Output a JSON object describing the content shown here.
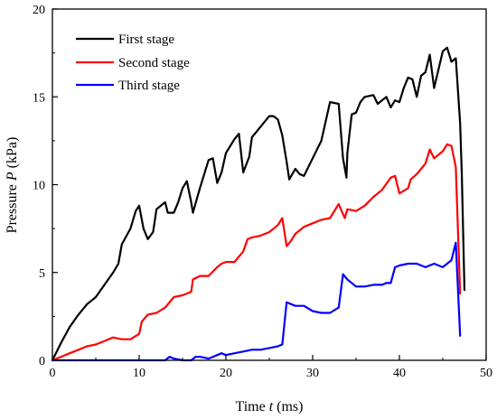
{
  "chart_data": {
    "type": "line",
    "xlabel": {
      "prefix": "Time ",
      "var": "t",
      "suffix": " (ms)"
    },
    "ylabel": {
      "prefix": "Pressure ",
      "var": "P",
      "suffix": " (kPa)"
    },
    "xlim": [
      0,
      50
    ],
    "ylim": [
      0,
      20
    ],
    "xticks": [
      0,
      10,
      20,
      30,
      40,
      50
    ],
    "yticks": [
      0,
      5,
      10,
      15,
      20
    ],
    "grid": false,
    "legend_position": "top-left",
    "series": [
      {
        "name": "First stage",
        "color": "#000000",
        "points": [
          [
            0,
            0
          ],
          [
            1,
            1.0
          ],
          [
            2,
            1.9
          ],
          [
            3,
            2.6
          ],
          [
            4,
            3.2
          ],
          [
            5,
            3.6
          ],
          [
            6,
            4.3
          ],
          [
            7,
            5.0
          ],
          [
            7.6,
            5.5
          ],
          [
            8,
            6.6
          ],
          [
            9,
            7.5
          ],
          [
            9.6,
            8.5
          ],
          [
            10,
            8.8
          ],
          [
            10.5,
            7.5
          ],
          [
            11,
            6.9
          ],
          [
            11.6,
            7.3
          ],
          [
            12,
            8.6
          ],
          [
            13,
            9.0
          ],
          [
            13.3,
            8.4
          ],
          [
            14,
            8.4
          ],
          [
            14.5,
            9.0
          ],
          [
            15,
            9.8
          ],
          [
            15.5,
            10.2
          ],
          [
            16,
            9.0
          ],
          [
            16.2,
            8.4
          ],
          [
            17,
            9.8
          ],
          [
            18,
            11.4
          ],
          [
            18.5,
            11.5
          ],
          [
            19,
            10.1
          ],
          [
            19.5,
            10.7
          ],
          [
            20,
            11.8
          ],
          [
            21,
            12.6
          ],
          [
            21.5,
            12.9
          ],
          [
            22,
            10.7
          ],
          [
            22.7,
            11.6
          ],
          [
            23,
            12.7
          ],
          [
            24,
            13.3
          ],
          [
            25,
            13.9
          ],
          [
            25.5,
            13.9
          ],
          [
            26,
            13.7
          ],
          [
            26.5,
            12.8
          ],
          [
            27,
            11.3
          ],
          [
            27.3,
            10.3
          ],
          [
            28,
            10.9
          ],
          [
            28.5,
            10.6
          ],
          [
            29,
            10.5
          ],
          [
            30,
            11.5
          ],
          [
            31,
            12.5
          ],
          [
            32,
            14.7
          ],
          [
            33,
            14.6
          ],
          [
            33.5,
            11.5
          ],
          [
            33.9,
            10.4
          ],
          [
            34,
            11.8
          ],
          [
            34.5,
            14.0
          ],
          [
            35,
            14.1
          ],
          [
            35.5,
            14.7
          ],
          [
            36,
            15.0
          ],
          [
            37,
            15.1
          ],
          [
            37.5,
            14.6
          ],
          [
            38,
            14.8
          ],
          [
            38.5,
            15.0
          ],
          [
            39,
            14.4
          ],
          [
            39.5,
            14.8
          ],
          [
            40,
            14.7
          ],
          [
            40.5,
            15.5
          ],
          [
            41,
            16.1
          ],
          [
            41.5,
            16.0
          ],
          [
            42,
            15.0
          ],
          [
            42.5,
            16.2
          ],
          [
            43,
            16.4
          ],
          [
            43.5,
            17.4
          ],
          [
            44,
            15.5
          ],
          [
            45,
            17.6
          ],
          [
            45.5,
            17.8
          ],
          [
            46,
            17.0
          ],
          [
            46.5,
            17.2
          ],
          [
            47,
            13.5
          ],
          [
            47.2,
            10.5
          ],
          [
            47.5,
            4.0
          ]
        ]
      },
      {
        "name": "Second stage",
        "color": "#ff0000",
        "points": [
          [
            0,
            0
          ],
          [
            1,
            0.2
          ],
          [
            2,
            0.4
          ],
          [
            3,
            0.6
          ],
          [
            4,
            0.8
          ],
          [
            5,
            0.9
          ],
          [
            6,
            1.1
          ],
          [
            7,
            1.3
          ],
          [
            8,
            1.2
          ],
          [
            9,
            1.2
          ],
          [
            10,
            1.5
          ],
          [
            10.3,
            2.2
          ],
          [
            11,
            2.6
          ],
          [
            12,
            2.7
          ],
          [
            13,
            3.0
          ],
          [
            14,
            3.6
          ],
          [
            15,
            3.7
          ],
          [
            16,
            3.9
          ],
          [
            16.2,
            4.6
          ],
          [
            17,
            4.8
          ],
          [
            18,
            4.8
          ],
          [
            19,
            5.3
          ],
          [
            19.5,
            5.5
          ],
          [
            20,
            5.6
          ],
          [
            21,
            5.6
          ],
          [
            22,
            6.2
          ],
          [
            22.5,
            6.9
          ],
          [
            23,
            7.0
          ],
          [
            24,
            7.1
          ],
          [
            25,
            7.3
          ],
          [
            26,
            7.7
          ],
          [
            26.5,
            8.1
          ],
          [
            27,
            6.5
          ],
          [
            27.5,
            6.8
          ],
          [
            28,
            7.2
          ],
          [
            29,
            7.6
          ],
          [
            30,
            7.8
          ],
          [
            31,
            8.0
          ],
          [
            32,
            8.1
          ],
          [
            32.5,
            8.5
          ],
          [
            33,
            8.9
          ],
          [
            33.7,
            8.1
          ],
          [
            34,
            8.6
          ],
          [
            35,
            8.5
          ],
          [
            36,
            8.8
          ],
          [
            37,
            9.3
          ],
          [
            38,
            9.7
          ],
          [
            39,
            10.4
          ],
          [
            39.5,
            10.5
          ],
          [
            40,
            9.5
          ],
          [
            41,
            9.8
          ],
          [
            41.3,
            10.3
          ],
          [
            42,
            10.6
          ],
          [
            43,
            11.2
          ],
          [
            43.5,
            12.0
          ],
          [
            44,
            11.5
          ],
          [
            45,
            11.9
          ],
          [
            45.5,
            12.3
          ],
          [
            46,
            12.2
          ],
          [
            46.5,
            11.0
          ],
          [
            47,
            3.8
          ]
        ]
      },
      {
        "name": "Third stage",
        "color": "#0000ff",
        "points": [
          [
            0,
            0
          ],
          [
            5,
            0
          ],
          [
            10,
            0
          ],
          [
            13,
            0.0
          ],
          [
            13.5,
            0.2
          ],
          [
            14,
            0.1
          ],
          [
            15,
            0.0
          ],
          [
            16,
            0.0
          ],
          [
            16.5,
            0.2
          ],
          [
            17,
            0.2
          ],
          [
            18,
            0.1
          ],
          [
            19,
            0.3
          ],
          [
            19.5,
            0.4
          ],
          [
            20,
            0.3
          ],
          [
            21,
            0.4
          ],
          [
            22,
            0.5
          ],
          [
            23,
            0.6
          ],
          [
            24,
            0.6
          ],
          [
            25,
            0.7
          ],
          [
            26,
            0.8
          ],
          [
            26.5,
            0.9
          ],
          [
            27,
            3.3
          ],
          [
            28,
            3.1
          ],
          [
            29,
            3.1
          ],
          [
            30,
            2.8
          ],
          [
            31,
            2.7
          ],
          [
            32,
            2.7
          ],
          [
            33,
            3.0
          ],
          [
            33.5,
            4.9
          ],
          [
            34,
            4.6
          ],
          [
            35,
            4.2
          ],
          [
            36,
            4.2
          ],
          [
            37,
            4.3
          ],
          [
            38,
            4.3
          ],
          [
            38.5,
            4.4
          ],
          [
            39,
            4.4
          ],
          [
            39.5,
            5.3
          ],
          [
            40,
            5.4
          ],
          [
            41,
            5.5
          ],
          [
            42,
            5.5
          ],
          [
            43,
            5.3
          ],
          [
            44,
            5.5
          ],
          [
            45,
            5.3
          ],
          [
            46,
            5.7
          ],
          [
            46.5,
            6.7
          ],
          [
            47,
            1.4
          ]
        ]
      }
    ]
  }
}
